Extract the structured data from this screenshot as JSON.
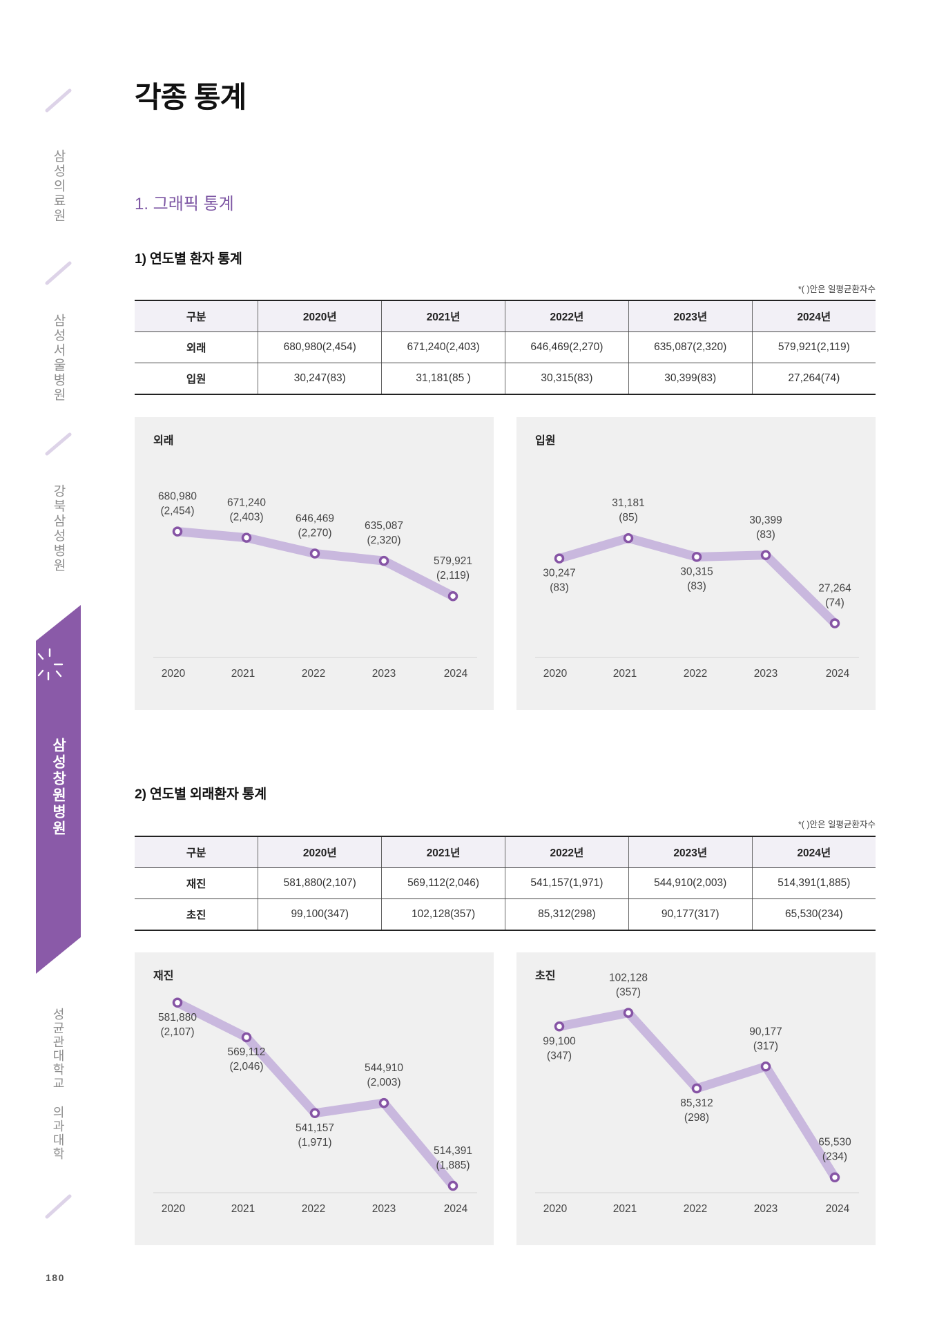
{
  "sidebar": {
    "items": [
      "삼성의료원",
      "삼성서울병원",
      "강북삼성병원",
      "삼성창원병원",
      "성균관대학교 의과대학"
    ],
    "active_index": 3
  },
  "page": {
    "title": "각종 통계",
    "section_title": "1. 그래픽 통계",
    "page_number": "180"
  },
  "section1": {
    "heading": "1) 연도별 환자 통계",
    "note": "*( )안은 일평균환자수",
    "table": {
      "headers": [
        "구분",
        "2020년",
        "2021년",
        "2022년",
        "2023년",
        "2024년"
      ],
      "rows": [
        [
          "외래",
          "680,980(2,454)",
          "671,240(2,403)",
          "646,469(2,270)",
          "635,087(2,320)",
          "579,921(2,119)"
        ],
        [
          "입원",
          "30,247(83)",
          "31,181(85 )",
          "30,315(83)",
          "30,399(83)",
          "27,264(74)"
        ]
      ]
    }
  },
  "section2": {
    "heading": "2) 연도별 외래환자 통계",
    "note": "*( )안은 일평균환자수",
    "table": {
      "headers": [
        "구분",
        "2020년",
        "2021년",
        "2022년",
        "2023년",
        "2024년"
      ],
      "rows": [
        [
          "재진",
          "581,880(2,107)",
          "569,112(2,046)",
          "541,157(1,971)",
          "544,910(2,003)",
          "514,391(1,885)"
        ],
        [
          "초진",
          "99,100(347)",
          "102,128(357)",
          "85,312(298)",
          "90,177(317)",
          "65,530(234)"
        ]
      ]
    }
  },
  "colors": {
    "accent": "#7c55a3",
    "sidebar_band": "#8a5aa8",
    "line": "#c9b8de",
    "marker": "#8654a5",
    "axis": "#d4d4d4",
    "panel": "#f0f0f0"
  },
  "chart_data": [
    {
      "type": "line",
      "title": "외래",
      "categories": [
        "2020",
        "2021",
        "2022",
        "2023",
        "2024"
      ],
      "values": [
        680980,
        671240,
        646469,
        635087,
        579921
      ],
      "point_labels": [
        [
          "680,980",
          "(2,454)"
        ],
        [
          "671,240",
          "(2,403)"
        ],
        [
          "646,469",
          "(2,270)"
        ],
        [
          "635,087",
          "(2,320)"
        ],
        [
          "579,921",
          "(2,119)"
        ]
      ],
      "ylim": [
        484000,
        795000
      ],
      "grid": false
    },
    {
      "type": "line",
      "title": "입원",
      "categories": [
        "2020",
        "2021",
        "2022",
        "2023",
        "2024"
      ],
      "values": [
        30247,
        31181,
        30315,
        30399,
        27264
      ],
      "point_labels": [
        [
          "30,247",
          "(83)"
        ],
        [
          "31,181",
          "(85)"
        ],
        [
          "30,315",
          "(83)"
        ],
        [
          "30,399",
          "(83)"
        ],
        [
          "27,264",
          "(74)"
        ]
      ],
      "ylim": [
        25690,
        34840
      ],
      "grid": false
    },
    {
      "type": "line",
      "title": "재진",
      "categories": [
        "2020",
        "2021",
        "2022",
        "2023",
        "2024"
      ],
      "values": [
        581880,
        569112,
        541157,
        544910,
        514391
      ],
      "point_labels": [
        [
          "581,880",
          "(2,107)"
        ],
        [
          "569,112",
          "(2,046)"
        ],
        [
          "541,157",
          "(1,971)"
        ],
        [
          "544,910",
          "(2,003)"
        ],
        [
          "514,391",
          "(1,885)"
        ]
      ],
      "ylim": [
        511850,
        585130
      ],
      "grid": false
    },
    {
      "type": "line",
      "title": "초진",
      "categories": [
        "2020",
        "2021",
        "2022",
        "2023",
        "2024"
      ],
      "values": [
        99100,
        102128,
        85312,
        90177,
        65530
      ],
      "point_labels": [
        [
          "99,100",
          "(347)"
        ],
        [
          "102,128",
          "(357)"
        ],
        [
          "85,312",
          "(298)"
        ],
        [
          "90,177",
          "(317)"
        ],
        [
          "65,530",
          "(234)"
        ]
      ],
      "ylim": [
        62100,
        106370
      ],
      "grid": false
    }
  ]
}
